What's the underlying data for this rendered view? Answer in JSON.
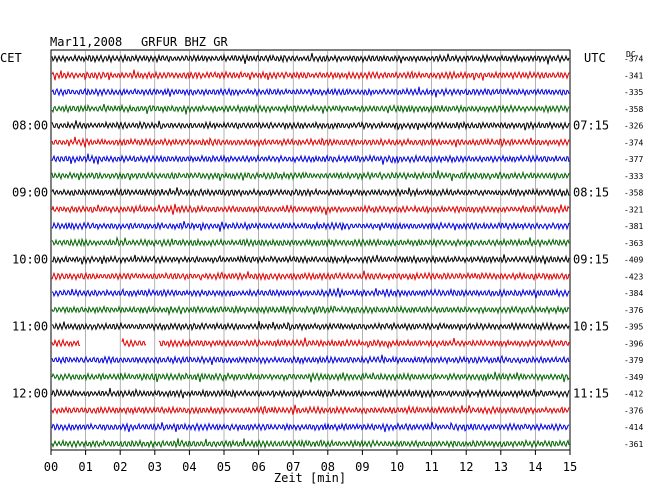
{
  "header": {
    "date": "Mar11,2008",
    "station": "GRFUR BHZ GR"
  },
  "left_tz": "CET",
  "right_tz": "UTC",
  "dc_label": "DC",
  "chart_data": {
    "type": "line",
    "title": "Mar11,2008   GRFUR BHZ GR",
    "xlabel": "Zeit [min]",
    "x_ticks": [
      "00",
      "01",
      "02",
      "03",
      "04",
      "05",
      "06",
      "07",
      "08",
      "09",
      "10",
      "11",
      "12",
      "13",
      "14",
      "15"
    ],
    "xlim": [
      0,
      15
    ],
    "row_minutes": 15,
    "grid": true,
    "row_colors": [
      "#000000",
      "#e00000",
      "#0000e0",
      "#006400"
    ],
    "left_hour_labels": [
      {
        "row": 4,
        "text": "08:00"
      },
      {
        "row": 8,
        "text": "09:00"
      },
      {
        "row": 12,
        "text": "10:00"
      },
      {
        "row": 16,
        "text": "11:00"
      },
      {
        "row": 20,
        "text": "12:00"
      }
    ],
    "right_hour_labels": [
      {
        "row": 4,
        "text": "07:15"
      },
      {
        "row": 8,
        "text": "08:15"
      },
      {
        "row": 12,
        "text": "09:15"
      },
      {
        "row": 16,
        "text": "10:15"
      },
      {
        "row": 20,
        "text": "11:15"
      }
    ],
    "dc_offsets": [
      "-374",
      "-341",
      "-335",
      "-358",
      "-326",
      "-374",
      "-377",
      "-333",
      "-358",
      "-321",
      "-381",
      "-363",
      "-409",
      "-423",
      "-384",
      "-376",
      "-395",
      "-396",
      "-379",
      "-349",
      "-412",
      "-376",
      "-414",
      "-361"
    ],
    "data_gaps": [
      {
        "row": 17,
        "from_min": 0.85,
        "to_min": 2.05
      },
      {
        "row": 17,
        "from_min": 2.75,
        "to_min": 3.1
      }
    ]
  }
}
